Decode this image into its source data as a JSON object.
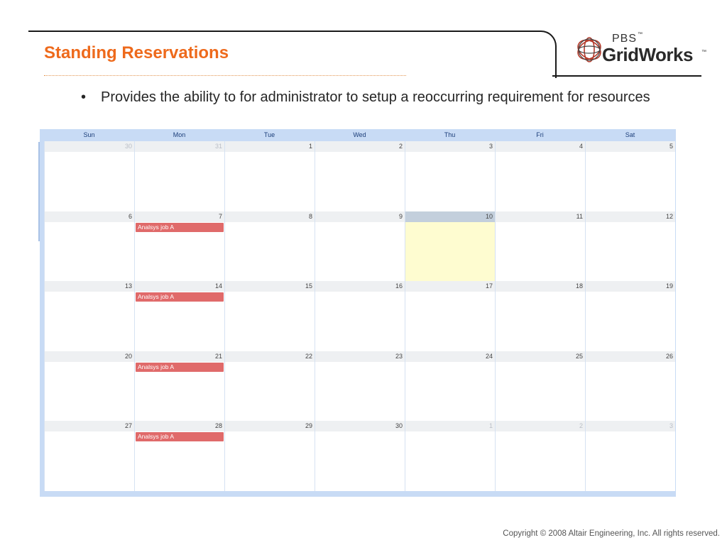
{
  "slide": {
    "title": "Standing Reservations",
    "bullet": "Provides the ability to for administrator to setup a reoccurring requirement for resources",
    "copyright": "Copyright © 2008 Altair Engineering, Inc. All rights reserved."
  },
  "logo": {
    "top": "PBS",
    "tm": "™",
    "name": "GridWorks",
    "icon": "globe-icon"
  },
  "calendar": {
    "weekdays": [
      "Sun",
      "Mon",
      "Tue",
      "Wed",
      "Thu",
      "Fri",
      "Sat"
    ],
    "event_color": "#e06a6a",
    "today_color": "#fefcd0",
    "weeks": [
      [
        {
          "day": "30",
          "other": true
        },
        {
          "day": "31",
          "other": true
        },
        {
          "day": "1"
        },
        {
          "day": "2"
        },
        {
          "day": "3"
        },
        {
          "day": "4"
        },
        {
          "day": "5"
        }
      ],
      [
        {
          "day": "6"
        },
        {
          "day": "7",
          "event": "Analsys job A"
        },
        {
          "day": "8"
        },
        {
          "day": "9"
        },
        {
          "day": "10",
          "today": true
        },
        {
          "day": "11"
        },
        {
          "day": "12"
        }
      ],
      [
        {
          "day": "13"
        },
        {
          "day": "14",
          "event": "Analsys job A"
        },
        {
          "day": "15"
        },
        {
          "day": "16"
        },
        {
          "day": "17"
        },
        {
          "day": "18"
        },
        {
          "day": "19"
        }
      ],
      [
        {
          "day": "20"
        },
        {
          "day": "21",
          "event": "Analsys job A"
        },
        {
          "day": "22"
        },
        {
          "day": "23"
        },
        {
          "day": "24"
        },
        {
          "day": "25"
        },
        {
          "day": "26"
        }
      ],
      [
        {
          "day": "27"
        },
        {
          "day": "28",
          "event": "Analsys job A"
        },
        {
          "day": "29"
        },
        {
          "day": "30"
        },
        {
          "day": "1",
          "other": true
        },
        {
          "day": "2",
          "other": true
        },
        {
          "day": "3",
          "other": true
        }
      ]
    ]
  }
}
